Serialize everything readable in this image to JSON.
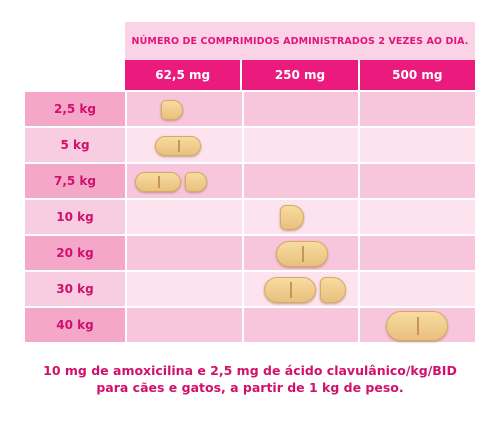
{
  "header": {
    "title": "NÚMERO DE COMPRIMIDOS ADMINISTRADOS 2 VEZES AO DIA.",
    "doses": [
      "62,5 mg",
      "250 mg",
      "500 mg"
    ]
  },
  "rows": [
    {
      "weight": "2,5 kg"
    },
    {
      "weight": "5 kg"
    },
    {
      "weight": "7,5 kg"
    },
    {
      "weight": "10 kg"
    },
    {
      "weight": "20 kg"
    },
    {
      "weight": "30 kg"
    },
    {
      "weight": "40 kg"
    }
  ],
  "footer": {
    "line1": "10 mg de amoxicilina e 2,5 mg de ácido clavulânico/kg/BID",
    "line2": "para cães e gatos, a partir de 1 kg de peso."
  },
  "colors": {
    "accent": "#e3147a",
    "header_fill": "#ea1b7d",
    "row_dark": "#f8c6dc",
    "row_light": "#fce3ee"
  }
}
